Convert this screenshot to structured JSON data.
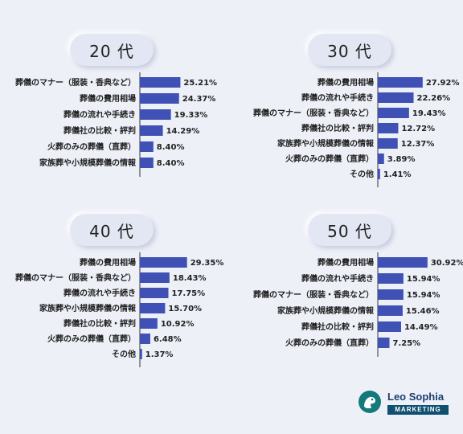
{
  "colors": {
    "bar": "#4051b5",
    "axis": "#333333",
    "pill_bg": "#e3e7f3",
    "logo_teal": "#13797a",
    "logo_navy": "#0f4f70"
  },
  "logo": {
    "name": "Leo Sophia",
    "tagline": "MARKETING",
    "icon": "leo-sophia-logo-icon"
  },
  "chart_data": [
    {
      "type": "bar",
      "orientation": "horizontal",
      "title": "20 代",
      "categories": [
        "葬儀のマナー（服装・香典など）",
        "葬儀の費用相場",
        "葬儀の流れや手続き",
        "葬儀社の比較・評判",
        "火葬のみの葬儀（直葬）",
        "家族葬や小規模葬儀の情報"
      ],
      "values": [
        25.21,
        24.37,
        19.33,
        14.29,
        8.4,
        8.4
      ],
      "labels": [
        "25.21%",
        "24.37%",
        "19.33%",
        "14.29%",
        "8.40%",
        "8.40%"
      ],
      "unit": "%",
      "grid": false,
      "legend": "none"
    },
    {
      "type": "bar",
      "orientation": "horizontal",
      "title": "30 代",
      "categories": [
        "葬儀の費用相場",
        "葬儀の流れや手続き",
        "葬儀のマナー（服装・香典など）",
        "葬儀社の比較・評判",
        "家族葬や小規模葬儀の情報",
        "火葬のみの葬儀（直葬）",
        "その他"
      ],
      "values": [
        27.92,
        22.26,
        19.43,
        12.72,
        12.37,
        3.89,
        1.41
      ],
      "labels": [
        "27.92%",
        "22.26%",
        "19.43%",
        "12.72%",
        "12.37%",
        "3.89%",
        "1.41%"
      ],
      "unit": "%",
      "grid": false,
      "legend": "none"
    },
    {
      "type": "bar",
      "orientation": "horizontal",
      "title": "40 代",
      "categories": [
        "葬儀の費用相場",
        "葬儀のマナー（服装・香典など）",
        "葬儀の流れや手続き",
        "家族葬や小規模葬儀の情報",
        "葬儀社の比較・評判",
        "火葬のみの葬儀（直葬）",
        "その他"
      ],
      "values": [
        29.35,
        18.43,
        17.75,
        15.7,
        10.92,
        6.48,
        1.37
      ],
      "labels": [
        "29.35%",
        "18.43%",
        "17.75%",
        "15.70%",
        "10.92%",
        "6.48%",
        "1.37%"
      ],
      "unit": "%",
      "grid": false,
      "legend": "none"
    },
    {
      "type": "bar",
      "orientation": "horizontal",
      "title": "50 代",
      "categories": [
        "葬儀の費用相場",
        "葬儀の流れや手続き",
        "葬儀のマナー（服装・香典など）",
        "家族葬や小規模葬儀の情報",
        "葬儀社の比較・評判",
        "火葬のみの葬儀（直葬）"
      ],
      "values": [
        30.92,
        15.94,
        15.94,
        15.46,
        14.49,
        7.25
      ],
      "labels": [
        "30.92%",
        "15.94%",
        "15.94%",
        "15.46%",
        "14.49%",
        "7.25%"
      ],
      "unit": "%",
      "grid": false,
      "legend": "none"
    }
  ]
}
